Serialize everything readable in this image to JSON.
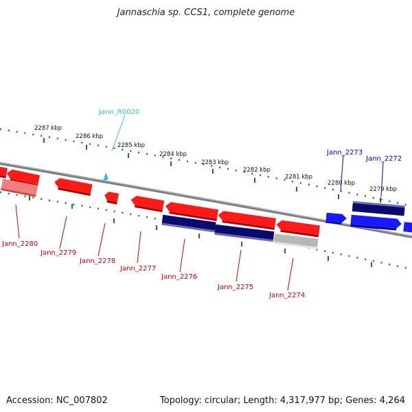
{
  "title": "Jannaschia sp. CCS1, complete genome",
  "footer": {
    "accession": "Accession: NC_007802",
    "summary": "Topology: circular; Length: 4,317,977 bp; Genes: 4,264"
  },
  "colors": {
    "reverse_gene": "#ff1a1a",
    "reverse_gene_faded": "#f08080",
    "forward_gene": "#1a1aff",
    "cds_dark": "#0a0a6e",
    "pseudo_gray": "#b8b8b8",
    "rna_marker": "#39b9e6",
    "reverse_label": "#cc0000",
    "forward_label": "#0000cc",
    "rna_label": "#33bbdd",
    "backbone": "#808080",
    "scale_ticks": "#1a7a1a"
  },
  "scale_labels": [
    "2287 kbp",
    "2286 kbp",
    "2285 kbp",
    "2284 kbp",
    "2283 kbp",
    "2282 kbp",
    "2281 kbp",
    "2280 kbp",
    "2279 kbp"
  ],
  "gene_labels": {
    "reverse": [
      "Jann_2280",
      "Jann_2279",
      "Jann_2278",
      "Jann_2277",
      "Jann_2276",
      "Jann_2275",
      "Jann_2274"
    ],
    "forward": [
      "Jann_2273",
      "Jann_2272"
    ],
    "rna": [
      "Jann_R0020"
    ]
  }
}
